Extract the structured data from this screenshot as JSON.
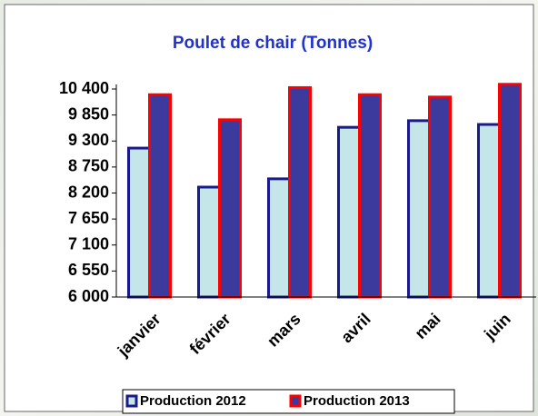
{
  "chart_data": {
    "type": "bar",
    "title": "Poulet  de chair  (Tonnes)",
    "categories": [
      "janvier",
      "février",
      "mars",
      "avril",
      "mai",
      "juin"
    ],
    "series": [
      {
        "name": "Production 2012",
        "color": "#c5e6e8",
        "border": "#1a1a8c",
        "values": [
          9150,
          8325,
          8500,
          9590,
          9730,
          9650
        ]
      },
      {
        "name": "Production 2013",
        "color": "#3d3a9e",
        "border": "#ff0000",
        "values": [
          10280,
          9750,
          10430,
          10280,
          10230,
          10500
        ]
      }
    ],
    "ylim": [
      6000,
      10400
    ],
    "yticks": [
      {
        "value": 6000,
        "label": "6 000"
      },
      {
        "value": 6550,
        "label": "6 550"
      },
      {
        "value": 7100,
        "label": "7 100"
      },
      {
        "value": 7650,
        "label": "7 650"
      },
      {
        "value": 8200,
        "label": "8 200"
      },
      {
        "value": 8750,
        "label": "8 750"
      },
      {
        "value": 9300,
        "label": "9 300"
      },
      {
        "value": 9850,
        "label": "9 850"
      },
      {
        "value": 10400,
        "label": "10 400"
      }
    ],
    "legend": "bottom"
  }
}
